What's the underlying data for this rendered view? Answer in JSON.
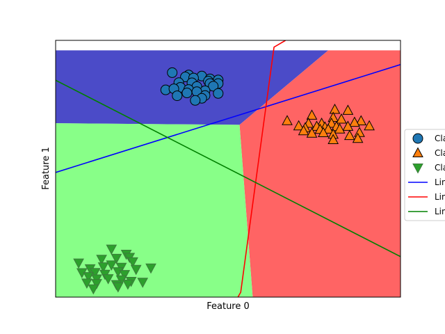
{
  "chart_data": {
    "type": "scatter",
    "title": "",
    "xlabel": "Feature 0",
    "ylabel": "Feature 1",
    "xlim": [
      -10.0,
      11.0
    ],
    "ylim": [
      -12.0,
      9.0
    ],
    "show_ticks": false,
    "grid": false,
    "legend_position": "right",
    "regions": [
      {
        "class": 0,
        "color": "#4b4bc8",
        "polygon": [
          [
            -10.0,
            8.18
          ],
          [
            6.6,
            8.18
          ],
          [
            1.2,
            2.09
          ],
          [
            -10.0,
            2.22
          ]
        ]
      },
      {
        "class": 1,
        "color": "#ff6464",
        "polygon": [
          [
            6.6,
            8.18
          ],
          [
            11.0,
            8.18
          ],
          [
            11.0,
            -12.0
          ],
          [
            2.0,
            -12.0
          ],
          [
            1.2,
            2.09
          ]
        ]
      },
      {
        "class": 2,
        "color": "#88ff88",
        "polygon": [
          [
            -10.0,
            2.22
          ],
          [
            1.2,
            2.09
          ],
          [
            2.0,
            -12.0
          ],
          [
            -10.0,
            -12.0
          ]
        ]
      }
    ],
    "series": [
      {
        "name": "Cla",
        "marker": "circle",
        "color": "#1f77b4",
        "x": [
          -2.9,
          -1.9,
          -2.1,
          -1.1,
          -1.6,
          -0.6,
          -0.1,
          -0.7,
          -2.5,
          -1.7,
          -0.6,
          -0.1,
          -2.4,
          -1.4,
          -0.4,
          -3.3,
          -2.8,
          -1.9,
          -0.9,
          -1.4,
          -0.1,
          -0.9,
          -2.0,
          -1.1,
          -2.6,
          -1.5
        ],
        "y": [
          6.36,
          6.17,
          6.01,
          6.08,
          5.92,
          5.85,
          5.76,
          5.67,
          5.54,
          5.53,
          5.47,
          5.47,
          5.16,
          5.23,
          5.25,
          4.95,
          5.04,
          4.98,
          4.88,
          4.8,
          4.66,
          4.49,
          4.7,
          4.26,
          4.47,
          4.09
        ]
      },
      {
        "name": "Cla",
        "marker": "triangle-up",
        "color": "#ff7f0e",
        "x": [
          7.0,
          7.8,
          5.6,
          6.9,
          7.4,
          8.6,
          4.1,
          5.4,
          6.2,
          6.8,
          8.2,
          4.8,
          5.9,
          6.4,
          7.1,
          7.8,
          9.1,
          5.2,
          6.1,
          6.6,
          7.3,
          8.5,
          6.3,
          6.9,
          7.9,
          6.9,
          8.4,
          5.1,
          5.6
        ],
        "y": [
          3.34,
          3.26,
          2.86,
          2.68,
          2.54,
          2.4,
          2.41,
          2.2,
          2.2,
          2.2,
          2.28,
          1.99,
          1.95,
          1.89,
          1.93,
          1.95,
          1.99,
          1.83,
          1.7,
          1.72,
          1.73,
          1.44,
          1.43,
          1.3,
          1.2,
          0.86,
          0.96,
          1.59,
          1.39
        ]
      },
      {
        "name": "Cla",
        "marker": "triangle-down",
        "color": "#2ca02c",
        "x": [
          -6.6,
          -5.7,
          -8.6,
          -7.2,
          -6.3,
          -5.5,
          -5.3,
          -7.1,
          -6.6,
          -7.9,
          -6.0,
          -5.1,
          -4.2,
          -8.4,
          -7.6,
          -7.0,
          -6.2,
          -5.8,
          -8.0,
          -7.5,
          -6.8,
          -6.0,
          -5.4,
          -4.7,
          -8.1,
          -7.5,
          -6.3,
          -5.6,
          -7.7,
          -6.2
        ],
        "y": [
          -8.05,
          -8.47,
          -9.19,
          -8.88,
          -8.81,
          -8.73,
          -9.09,
          -9.5,
          -9.35,
          -9.66,
          -9.54,
          -9.71,
          -9.6,
          -9.98,
          -9.97,
          -10.11,
          -9.9,
          -10.13,
          -10.3,
          -10.49,
          -10.47,
          -10.56,
          -10.69,
          -10.76,
          -10.83,
          -10.87,
          -10.95,
          -10.92,
          -11.3,
          -11.14
        ]
      }
    ],
    "lines": [
      {
        "name": "Lin",
        "color": "#0000ff",
        "x": [
          -10.0,
          11.0
        ],
        "y": [
          -1.8,
          7.02
        ]
      },
      {
        "name": "Lin",
        "color": "#ff0000",
        "x": [
          1.1,
          1.27,
          3.3,
          4.0
        ],
        "y": [
          -12.0,
          -11.6,
          8.45,
          9.0
        ]
      },
      {
        "name": "Lin",
        "color": "#008000",
        "x": [
          -10.0,
          11.0
        ],
        "y": [
          5.74,
          -8.69
        ]
      }
    ]
  }
}
